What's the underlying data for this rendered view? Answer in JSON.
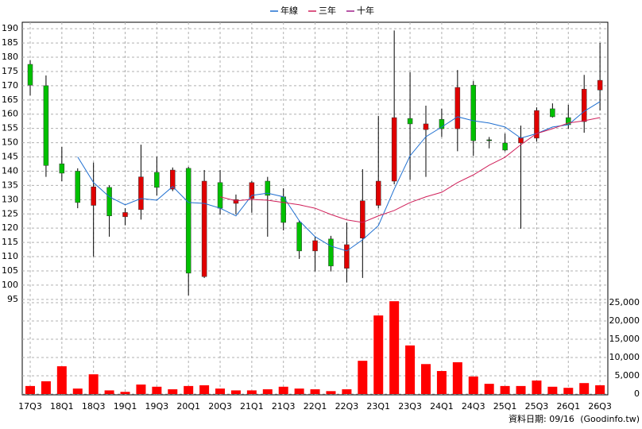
{
  "chart_data": {
    "type": "candlestick",
    "categories": [
      "17Q3",
      null,
      "18Q1",
      null,
      "18Q3",
      null,
      "19Q1",
      null,
      "19Q3",
      null,
      "20Q1",
      null,
      "20Q3",
      null,
      "21Q1",
      null,
      "21Q3",
      null,
      "22Q1",
      null,
      "22Q3",
      null,
      "23Q1",
      null,
      "23Q3",
      null,
      "24Q1",
      null,
      "24Q3",
      null,
      "25Q1",
      null,
      "25Q3",
      null,
      "26Q1",
      null,
      "26Q3"
    ],
    "open": [
      177.5,
      170,
      142.6,
      140,
      128,
      134.3,
      124,
      126.5,
      139.6,
      133.7,
      141,
      103,
      136,
      128.7,
      130.4,
      136.5,
      131,
      122,
      112,
      116.2,
      105.9,
      116.5,
      128,
      136.5,
      158.5,
      154.6,
      158.2,
      154.9,
      170.2,
      151,
      149.9,
      149.9,
      151.6,
      161.9,
      158.8,
      157.4,
      168.5
    ],
    "high": [
      179,
      173.6,
      148.5,
      141,
      143,
      135,
      127,
      149.3,
      145,
      141.3,
      141.5,
      140.4,
      140.4,
      131.8,
      136.5,
      138,
      134,
      122.6,
      117,
      117.3,
      122,
      140.7,
      159.4,
      189.4,
      174.7,
      163,
      161.9,
      175.5,
      171.6,
      152,
      153.2,
      156,
      162.4,
      163.8,
      163.3,
      173.8,
      185
    ],
    "low": [
      166.6,
      138,
      136.5,
      127,
      110,
      117,
      121,
      123,
      131.5,
      133,
      96.4,
      102.5,
      124.8,
      124.8,
      125.4,
      117,
      119.2,
      109.2,
      104.8,
      104.8,
      100.9,
      102.5,
      127,
      135.4,
      137,
      138,
      152,
      147,
      145.4,
      148,
      147,
      119.8,
      150.4,
      158.8,
      154.9,
      153.5,
      161.3
    ],
    "close": [
      170.2,
      142,
      139.3,
      129,
      134.5,
      124.3,
      125.5,
      138,
      134.3,
      140.4,
      104.2,
      136.5,
      127,
      130,
      136,
      131.5,
      122,
      112,
      115.6,
      106.7,
      114.2,
      129.6,
      136.5,
      158.8,
      156.6,
      156.6,
      154.9,
      169.4,
      150.7,
      150.8,
      147.4,
      151.8,
      161.3,
      159.1,
      156.3,
      168.8,
      171.9
    ],
    "up_color": "#e00000",
    "down_color": "#00c000",
    "wick_color": "#000000",
    "series": [
      {
        "name": "年線",
        "color": "#1f6fd0",
        "values": [
          null,
          null,
          null,
          145,
          136,
          131,
          128.2,
          130.4,
          129.8,
          134.6,
          129,
          128.7,
          127,
          124.3,
          131.5,
          132.3,
          131,
          122.6,
          117,
          113.7,
          112,
          115.9,
          120.9,
          133.7,
          145.4,
          152.1,
          155.5,
          159.1,
          157.7,
          156.9,
          155.5,
          151.6,
          153.2,
          155.5,
          156.3,
          161,
          164.4
        ]
      },
      {
        "name": "三年",
        "color": "#d0205a",
        "values": [
          null,
          null,
          null,
          null,
          null,
          null,
          null,
          null,
          null,
          null,
          null,
          null,
          131,
          129.6,
          130.1,
          129.8,
          129,
          128.2,
          127,
          124.8,
          122.9,
          122,
          124.3,
          126.2,
          129,
          131,
          132.6,
          136,
          138.7,
          142.1,
          144.9,
          149.3,
          153.2,
          154.9,
          156.9,
          157.7,
          158.8
        ]
      },
      {
        "name": "十年",
        "color": "#a0208a",
        "values": [
          null,
          null,
          null,
          null,
          null,
          null,
          null,
          null,
          null,
          null,
          null,
          null,
          null,
          null,
          null,
          null,
          null,
          null,
          null,
          null,
          null,
          null,
          null,
          null,
          null,
          null,
          null,
          null,
          null,
          null,
          null,
          null,
          null,
          null,
          null,
          null,
          null
        ]
      }
    ],
    "volume": [
      2200,
      3500,
      7600,
      1500,
      5400,
      1000,
      600,
      2600,
      2000,
      1300,
      2200,
      2400,
      1500,
      1000,
      1000,
      1300,
      2000,
      1500,
      1300,
      800,
      1300,
      9100,
      21500,
      25400,
      13300,
      8200,
      6300,
      8700,
      4800,
      2800,
      2200,
      2200,
      3700,
      2000,
      1700,
      3000,
      2400
    ],
    "volume_color": "#ff0000",
    "ylim": [
      93,
      192
    ],
    "yticks": [
      95,
      100,
      105,
      110,
      115,
      120,
      125,
      130,
      135,
      140,
      145,
      150,
      155,
      160,
      165,
      170,
      175,
      180,
      185,
      190
    ],
    "y2lim": [
      0,
      25000
    ],
    "y2ticks": [
      0,
      {
        "value": 5000,
        "label": "5,000"
      },
      {
        "value": 10000,
        "label": "10,000"
      },
      {
        "value": 15000,
        "label": "15,000"
      },
      {
        "value": 20000,
        "label": "20,000"
      },
      {
        "value": 25000,
        "label": "25,000"
      }
    ],
    "grid": true,
    "legend": "top",
    "footer_date": "資料日期: 09/16",
    "footer_source": "(Goodinfo.tw)"
  }
}
